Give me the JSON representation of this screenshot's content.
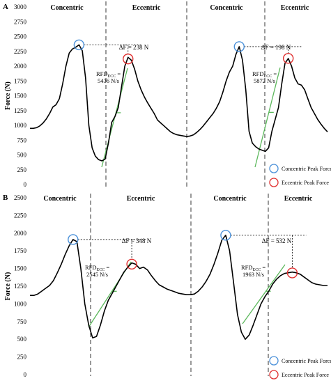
{
  "chart_data": [
    {
      "type": "line",
      "panel": "A",
      "ylabel": "Force (N)",
      "ylim": [
        0,
        3000
      ],
      "yticks": [
        0,
        250,
        500,
        750,
        1000,
        1250,
        1500,
        1750,
        2000,
        2250,
        2500,
        2750,
        3000
      ],
      "phases": [
        "Concentric",
        "Eccentric",
        "Concentric",
        "Eccentric"
      ],
      "delta_labels": [
        "ΔF = 238 N",
        "ΔF = 198 N"
      ],
      "rfd_labels": [
        {
          "line1": "RFD",
          "sub": "ECC",
          "line1_suffix": " =",
          "line2": "5436 N/s"
        },
        {
          "line1": "RFD",
          "sub": "ECC",
          "line1_suffix": " =",
          "line2": "5872 N/s"
        }
      ],
      "series": [
        {
          "values": [
            950,
            950,
            960,
            990,
            1040,
            1110,
            1200,
            1310,
            1350,
            1450,
            1700,
            2000,
            2220,
            2290,
            2320,
            2360,
            2260,
            1800,
            1000,
            620,
            480,
            420,
            400,
            430,
            700,
            1050,
            1150,
            1300,
            1650,
            2000,
            2150,
            2100,
            1950,
            1750,
            1600,
            1480,
            1380,
            1290,
            1200,
            1090,
            1040,
            990,
            940,
            890,
            860,
            840,
            830,
            820,
            810,
            820,
            840,
            880,
            930,
            990,
            1060,
            1130,
            1200,
            1290,
            1400,
            1560,
            1750,
            1900,
            2000,
            2200,
            2330,
            2100,
            1600,
            900,
            700,
            640,
            600,
            580,
            560,
            620,
            900,
            1100,
            1300,
            1700,
            2050,
            2130,
            2000,
            1800,
            1700,
            1680,
            1600,
            1450,
            1300,
            1200,
            1100,
            1020,
            950,
            890
          ]
        }
      ],
      "concentric_peaks": [
        2360,
        2330
      ],
      "eccentric_peaks": [
        2122,
        2132
      ],
      "legend": [
        "Concentric Peak Force",
        "Eccentric Peak Force"
      ]
    },
    {
      "type": "line",
      "panel": "B",
      "ylabel": "Force (N)",
      "ylim": [
        0,
        2500
      ],
      "yticks": [
        0,
        250,
        500,
        750,
        1000,
        1250,
        1500,
        1750,
        2000,
        2250,
        2500
      ],
      "phases": [
        "Concentric",
        "Eccentric",
        "Concentric",
        "Eccentric"
      ],
      "delta_labels": [
        "ΔF = 348 N",
        "ΔF = 532 N"
      ],
      "rfd_labels": [
        {
          "line1": "RFD",
          "sub": "ECC",
          "line1_suffix": " =",
          "line2": "2545 N/s"
        },
        {
          "line1": "RFD",
          "sub": "ECC",
          "line1_suffix": " =",
          "line2": "1963 N/s"
        }
      ],
      "series": [
        {
          "values": [
            1120,
            1120,
            1140,
            1180,
            1220,
            1260,
            1330,
            1440,
            1560,
            1700,
            1820,
            1910,
            1880,
            1500,
            1000,
            700,
            520,
            540,
            700,
            900,
            1050,
            1150,
            1250,
            1350,
            1450,
            1520,
            1580,
            1560,
            1500,
            1520,
            1480,
            1400,
            1330,
            1270,
            1240,
            1210,
            1190,
            1170,
            1150,
            1140,
            1130,
            1130,
            1140,
            1180,
            1240,
            1320,
            1420,
            1560,
            1720,
            1900,
            1970,
            1750,
            1300,
            850,
            600,
            500,
            560,
            700,
            850,
            1000,
            1100,
            1180,
            1280,
            1350,
            1400,
            1430,
            1440,
            1450,
            1440,
            1420,
            1380,
            1340,
            1300,
            1280,
            1270,
            1260,
            1260
          ]
        }
      ],
      "concentric_peaks": [
        1910,
        1970
      ],
      "eccentric_peaks": [
        1562,
        1438
      ],
      "legend": [
        "Concentric Peak Force",
        "Eccentric Peak Force"
      ]
    }
  ]
}
